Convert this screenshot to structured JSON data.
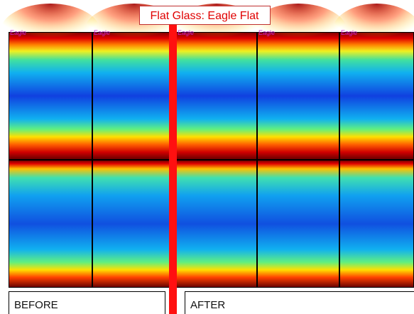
{
  "header": {
    "title": "Flat Glass: Eagle Flat"
  },
  "panels": [
    {
      "label": "Eagle"
    },
    {
      "label": "Eagle"
    },
    {
      "label": "Eagle"
    },
    {
      "label": "Eagle"
    },
    {
      "label": "Eagle"
    }
  ],
  "footer": {
    "before": "BEFORE",
    "after": "AFTER"
  }
}
